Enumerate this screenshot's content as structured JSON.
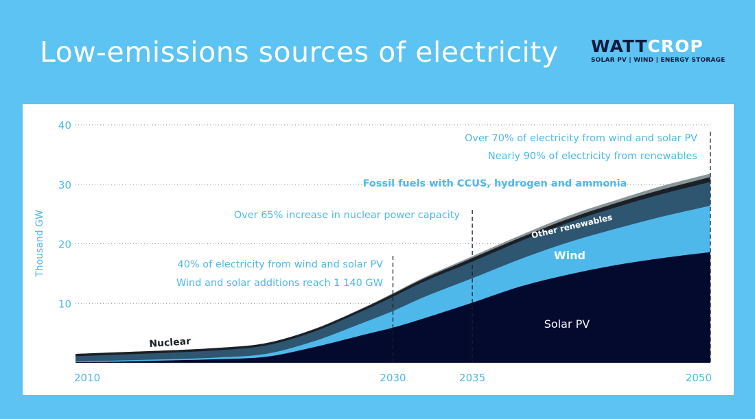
{
  "header": {
    "title": "Low-emissions sources of electricity",
    "logo_part1": "WATT",
    "logo_part2": "CROP",
    "logo_tagline": "SOLAR PV | WIND | ENERGY STORAGE"
  },
  "colors": {
    "background": "#5cc3f2",
    "solar_pv": "#030a2e",
    "wind": "#4fb8eb",
    "other_renewables": "#2e5670",
    "nuclear": "#1b2027",
    "fossil_ccus": "#8a9597",
    "text_blue": "#4fb8eb"
  },
  "chart_data": {
    "type": "area",
    "stacked": true,
    "ylabel": "Thousand GW",
    "ylim": [
      0,
      40
    ],
    "yticks": [
      10,
      20,
      30,
      40
    ],
    "xlim": [
      2010,
      2050
    ],
    "xticks": [
      2010,
      2030,
      2035,
      2050
    ],
    "grid": "dotted horizontal",
    "x": [
      2010,
      2013,
      2016,
      2019,
      2022,
      2025,
      2028,
      2030,
      2032,
      2035,
      2038,
      2041,
      2044,
      2047,
      2050
    ],
    "series": [
      {
        "name": "Solar PV",
        "values": [
          0.1,
          0.2,
          0.4,
          0.6,
          1.0,
          2.6,
          4.6,
          5.9,
          7.5,
          10.1,
          12.8,
          14.8,
          16.4,
          17.6,
          18.6
        ]
      },
      {
        "name": "Wind",
        "values": [
          0.1,
          0.2,
          0.2,
          0.3,
          0.5,
          1.0,
          2.0,
          2.8,
          3.6,
          4.1,
          4.6,
          5.4,
          6.1,
          7.0,
          7.8
        ]
      },
      {
        "name": "Other renewables",
        "values": [
          0.9,
          1.0,
          1.1,
          1.2,
          1.4,
          1.6,
          2.0,
          2.4,
          2.6,
          2.8,
          3.0,
          3.3,
          3.6,
          3.8,
          4.0
        ]
      },
      {
        "name": "Nuclear",
        "values": [
          0.4,
          0.4,
          0.4,
          0.4,
          0.4,
          0.4,
          0.4,
          0.45,
          0.5,
          0.6,
          0.6,
          0.65,
          0.7,
          0.75,
          0.8
        ]
      },
      {
        "name": "Fossil fuels with CCUS, hydrogen and ammonia",
        "values": [
          0,
          0,
          0,
          0,
          0,
          0.05,
          0.1,
          0.15,
          0.2,
          0.3,
          0.4,
          0.5,
          0.5,
          0.6,
          0.6
        ]
      }
    ],
    "series_labels": {
      "solar_pv": "Solar PV",
      "wind": "Wind",
      "other_renewables": "Other renewables",
      "nuclear": "Nuclear",
      "fossil": "Fossil fuels with CCUS, hydrogen and ammonia"
    },
    "milestones": [
      {
        "year": 2030,
        "lines": [
          "40% of electricity from wind and solar PV",
          "Wind and solar additions reach 1 140 GW"
        ]
      },
      {
        "year": 2035,
        "lines": [
          "Over 65% increase in nuclear power capacity"
        ]
      },
      {
        "year": 2050,
        "lines": [
          "Over 70% of electricity from wind and solar PV",
          "Nearly 90% of electricity from renewables"
        ]
      }
    ]
  }
}
